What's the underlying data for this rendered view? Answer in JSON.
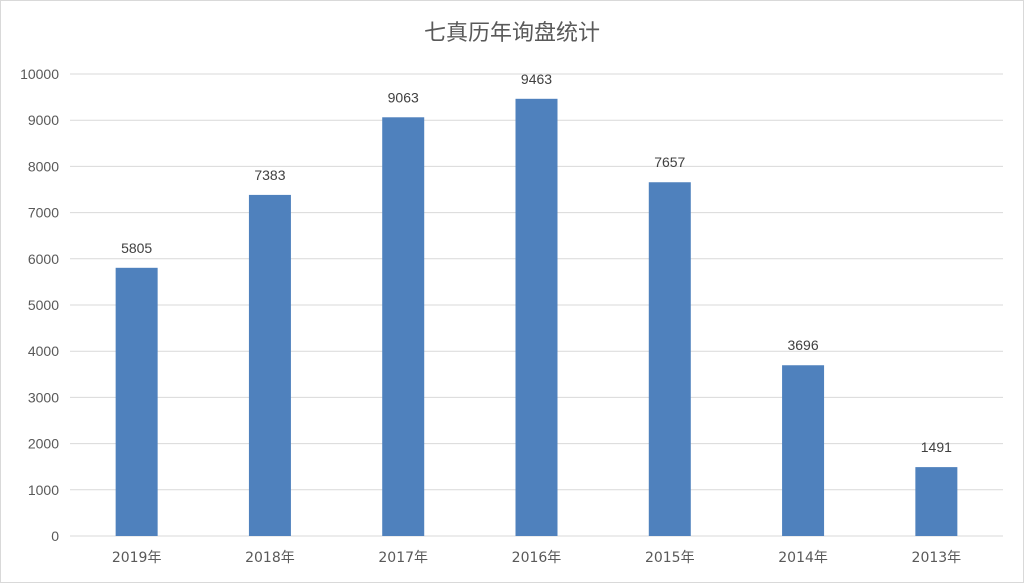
{
  "chart_data": {
    "type": "bar",
    "title": "七真历年询盘统计",
    "categories": [
      "2019年",
      "2018年",
      "2017年",
      "2016年",
      "2015年",
      "2014年",
      "2013年"
    ],
    "values": [
      5805,
      7383,
      9063,
      9463,
      7657,
      3696,
      1491
    ],
    "xlabel": "",
    "ylabel": "",
    "ylim": [
      0,
      10000
    ],
    "yticks": [
      0,
      1000,
      2000,
      3000,
      4000,
      5000,
      6000,
      7000,
      8000,
      9000,
      10000
    ],
    "grid": true,
    "legend": "none",
    "bar_color": "#4f81bd",
    "grid_color": "#d9d9d9"
  }
}
